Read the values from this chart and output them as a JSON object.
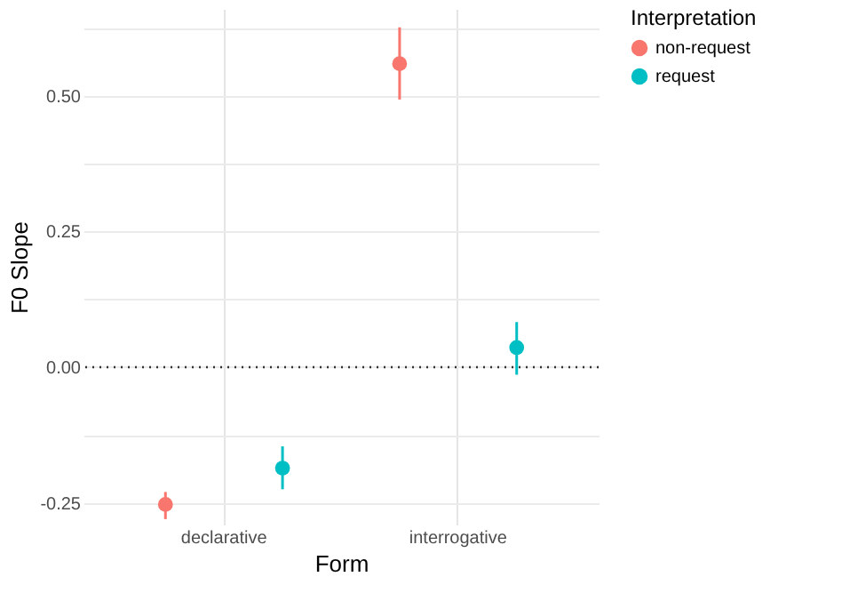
{
  "chart_data": {
    "type": "scatter",
    "xlabel": "Form",
    "ylabel": "F0 Slope",
    "legend_title": "Interpretation",
    "legend": "right",
    "categories": [
      "declarative",
      "interrogative"
    ],
    "series": [
      {
        "name": "non-request",
        "color": "#f8766d",
        "values": [
          -0.253,
          0.559
        ],
        "errors": [
          [
            -0.28,
            -0.23
          ],
          [
            0.493,
            0.626
          ]
        ]
      },
      {
        "name": "request",
        "color": "#00bfc4",
        "values": [
          -0.186,
          0.036
        ],
        "errors": [
          [
            -0.225,
            -0.146
          ],
          [
            -0.014,
            0.083
          ]
        ]
      }
    ],
    "ylim": [
      -0.29,
      0.66
    ],
    "yticks": [
      {
        "value": -0.25,
        "label": "-0.25"
      },
      {
        "value": -0.125,
        "label": null
      },
      {
        "value": 0,
        "label": "0.00"
      },
      {
        "value": 0.125,
        "label": null
      },
      {
        "value": 0.25,
        "label": "0.25"
      },
      {
        "value": 0.375,
        "label": null
      },
      {
        "value": 0.5,
        "label": "0.50"
      },
      {
        "value": 0.625,
        "label": null
      }
    ],
    "ref_lines": [
      {
        "axis": "y",
        "value": 0,
        "line_style": "dotted",
        "color": "#333333"
      }
    ],
    "grid": true,
    "marker": "circle"
  }
}
